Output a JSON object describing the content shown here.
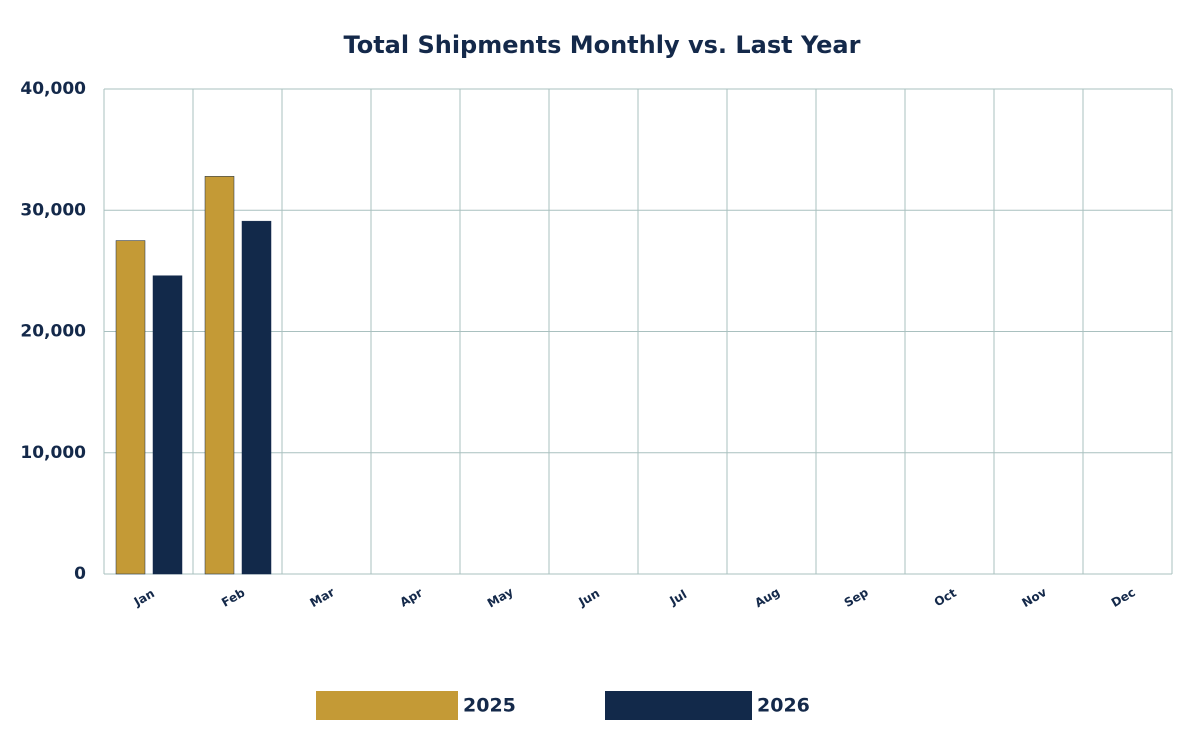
{
  "chart_data": {
    "type": "bar",
    "title": "Total Shipments Monthly vs. Last Year",
    "categories": [
      "Jan",
      "Feb",
      "Mar",
      "Apr",
      "May",
      "Jun",
      "Jul",
      "Aug",
      "Sep",
      "Oct",
      "Nov",
      "Dec"
    ],
    "series": [
      {
        "name": "2025",
        "color": "#c49a36",
        "values": [
          27500,
          32800,
          null,
          null,
          null,
          null,
          null,
          null,
          null,
          null,
          null,
          null
        ]
      },
      {
        "name": "2026",
        "color": "#12294a",
        "values": [
          24600,
          29100,
          null,
          null,
          null,
          null,
          null,
          null,
          null,
          null,
          null,
          null
        ]
      }
    ],
    "ylim": [
      0,
      40000
    ],
    "yticks": [
      0,
      {
        "value": 10000,
        "label": "10,000"
      },
      {
        "value": 20000,
        "label": "20,000"
      },
      {
        "value": 30000,
        "label": "30,000"
      },
      {
        "value": 40000,
        "label": "40,000"
      }
    ],
    "grid": true,
    "legend": "bottom"
  }
}
